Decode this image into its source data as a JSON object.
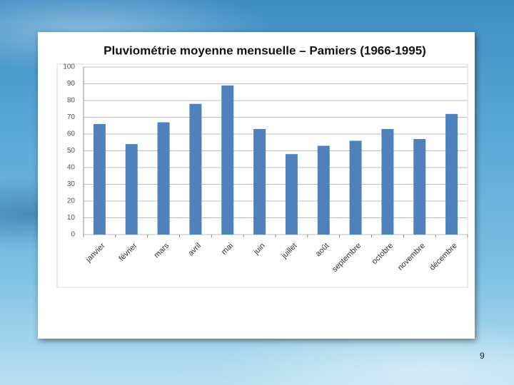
{
  "chart_data": {
    "type": "bar",
    "title": "Pluviométrie moyenne mensuelle – Pamiers (1966-1995)",
    "categories": [
      "janvier",
      "février",
      "mars",
      "avril",
      "mai",
      "juin",
      "juillet",
      "août",
      "septembre",
      "octobre",
      "novembre",
      "décembre"
    ],
    "values": [
      66,
      54,
      67,
      78,
      89,
      63,
      48,
      53,
      56,
      63,
      57,
      72
    ],
    "color": "#4f81bd",
    "ylim": [
      0,
      100
    ],
    "yticks": [
      0,
      10,
      20,
      30,
      40,
      50,
      60,
      70,
      80,
      90,
      100
    ],
    "grid": true
  },
  "page_number": "9"
}
